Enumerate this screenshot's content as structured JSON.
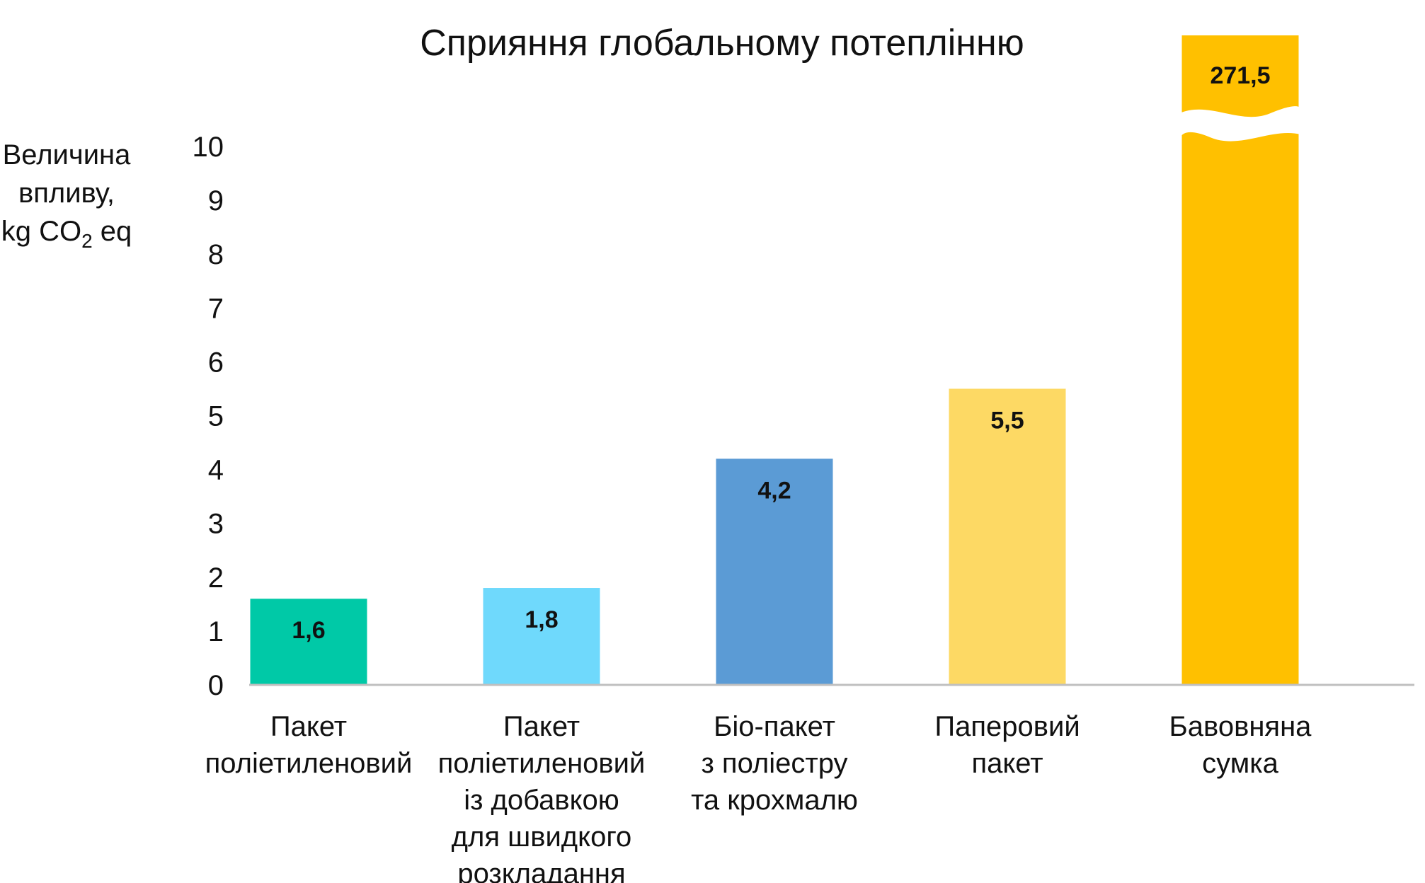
{
  "chart_data": {
    "type": "bar",
    "title": "Сприяння глобальному потеплінню",
    "ylabel_lines": [
      "Величина",
      "впливу,"
    ],
    "ylabel_unit": {
      "pre": "kg CO",
      "sub": "2",
      "post": " eq"
    },
    "ylim": [
      0,
      10
    ],
    "axis_break": true,
    "yticks": [
      "0",
      "1",
      "2",
      "3",
      "4",
      "5",
      "6",
      "7",
      "8",
      "9",
      "10"
    ],
    "grid": false,
    "legend": "none",
    "categories": [
      [
        "Пакет",
        "поліетиленовий"
      ],
      [
        "Пакет",
        "поліетиленовий",
        "із добавкою",
        "для швидкого",
        "розкладання"
      ],
      [
        "Біо-пакет",
        "з поліестру",
        "та крохмалю"
      ],
      [
        "Паперовий",
        "пакет"
      ],
      [
        "Бавовняна",
        "сумка"
      ]
    ],
    "values": [
      1.6,
      1.8,
      4.2,
      5.5,
      271.5
    ],
    "value_labels": [
      "1,6",
      "1,8",
      "4,2",
      "5,5",
      "271,5"
    ],
    "colors": [
      "#00C9A7",
      "#6FD9FC",
      "#5B9BD5",
      "#FDD964",
      "#FFC000"
    ]
  }
}
